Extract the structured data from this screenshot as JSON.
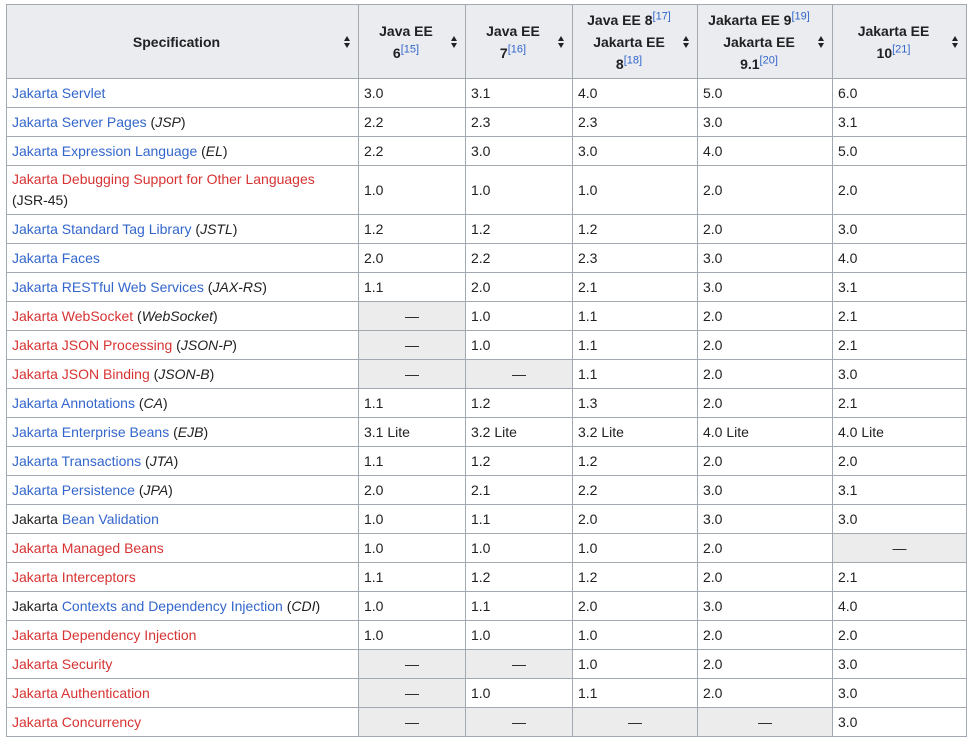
{
  "headers": [
    {
      "line1": "Specification",
      "line2": "",
      "ref": "",
      "line3": "",
      "ref2": ""
    },
    {
      "line1": "Java EE",
      "line2": "6",
      "ref": "[15]",
      "line3": "",
      "ref2": ""
    },
    {
      "line1": "Java EE",
      "line2": "7",
      "ref": "[16]",
      "line3": "",
      "ref2": ""
    },
    {
      "line1": "Java EE 8",
      "line2": "",
      "ref": "[17]",
      "line3": "Jakarta EE 8",
      "ref2": "[18]"
    },
    {
      "line1": "Jakarta EE 9",
      "line2": "",
      "ref": "[19]",
      "line3": "Jakarta EE 9.1",
      "ref2": "[20]"
    },
    {
      "line1": "Jakarta EE",
      "line2": "10",
      "ref": "[21]",
      "line3": "",
      "ref2": ""
    }
  ],
  "rows": [
    {
      "prefix": "",
      "link": "Jakarta Servlet",
      "link_color": "blue",
      "abbr": "",
      "suffix": "",
      "v": [
        "3.0",
        "3.1",
        "4.0",
        "5.0",
        "6.0"
      ]
    },
    {
      "prefix": "",
      "link": "Jakarta Server Pages",
      "link_color": "blue",
      "abbr": "JSP",
      "suffix": "",
      "v": [
        "2.2",
        "2.3",
        "2.3",
        "3.0",
        "3.1"
      ]
    },
    {
      "prefix": "",
      "link": "Jakarta Expression Language",
      "link_color": "blue",
      "abbr": "EL",
      "suffix": "",
      "v": [
        "2.2",
        "3.0",
        "3.0",
        "4.0",
        "5.0"
      ]
    },
    {
      "prefix": "",
      "link": "Jakarta Debugging Support for Other Languages",
      "link_color": "red",
      "abbr": "",
      "suffix": "(JSR-45)",
      "v": [
        "1.0",
        "1.0",
        "1.0",
        "2.0",
        "2.0"
      ],
      "tall": true
    },
    {
      "prefix": "",
      "link": "Jakarta Standard Tag Library",
      "link_color": "blue",
      "abbr": "JSTL",
      "suffix": "",
      "v": [
        "1.2",
        "1.2",
        "1.2",
        "2.0",
        "3.0"
      ]
    },
    {
      "prefix": "",
      "link": "Jakarta Faces",
      "link_color": "blue",
      "abbr": "",
      "suffix": "",
      "v": [
        "2.0",
        "2.2",
        "2.3",
        "3.0",
        "4.0"
      ]
    },
    {
      "prefix": "",
      "link": "Jakarta RESTful Web Services",
      "link_color": "blue",
      "abbr": "JAX-RS",
      "suffix": "",
      "v": [
        "1.1",
        "2.0",
        "2.1",
        "3.0",
        "3.1"
      ]
    },
    {
      "prefix": "",
      "link": "Jakarta WebSocket",
      "link_color": "red",
      "abbr": "WebSocket",
      "suffix": "",
      "v": [
        "—",
        "1.0",
        "1.1",
        "2.0",
        "2.1"
      ]
    },
    {
      "prefix": "",
      "link": "Jakarta JSON Processing",
      "link_color": "red",
      "abbr": "JSON-P",
      "suffix": "",
      "v": [
        "—",
        "1.0",
        "1.1",
        "2.0",
        "2.1"
      ]
    },
    {
      "prefix": "",
      "link": "Jakarta JSON Binding",
      "link_color": "red",
      "abbr": "JSON-B",
      "suffix": "",
      "v": [
        "—",
        "—",
        "1.1",
        "2.0",
        "3.0"
      ]
    },
    {
      "prefix": "",
      "link": "Jakarta Annotations",
      "link_color": "blue",
      "abbr": "CA",
      "suffix": "",
      "v": [
        "1.1",
        "1.2",
        "1.3",
        "2.0",
        "2.1"
      ]
    },
    {
      "prefix": "",
      "link": "Jakarta Enterprise Beans",
      "link_color": "blue",
      "abbr": "EJB",
      "suffix": "",
      "v": [
        "3.1 Lite",
        "3.2 Lite",
        "3.2 Lite",
        "4.0 Lite",
        "4.0 Lite"
      ]
    },
    {
      "prefix": "",
      "link": "Jakarta Transactions",
      "link_color": "blue",
      "abbr": "JTA",
      "suffix": "",
      "v": [
        "1.1",
        "1.2",
        "1.2",
        "2.0",
        "2.0"
      ]
    },
    {
      "prefix": "",
      "link": "Jakarta Persistence",
      "link_color": "blue",
      "abbr": "JPA",
      "suffix": "",
      "v": [
        "2.0",
        "2.1",
        "2.2",
        "3.0",
        "3.1"
      ]
    },
    {
      "prefix": "Jakarta ",
      "link": "Bean Validation",
      "link_color": "blue",
      "abbr": "",
      "suffix": "",
      "v": [
        "1.0",
        "1.1",
        "2.0",
        "3.0",
        "3.0"
      ]
    },
    {
      "prefix": "",
      "link": "Jakarta Managed Beans",
      "link_color": "red",
      "abbr": "",
      "suffix": "",
      "v": [
        "1.0",
        "1.0",
        "1.0",
        "2.0",
        "—"
      ]
    },
    {
      "prefix": "",
      "link": "Jakarta Interceptors",
      "link_color": "red",
      "abbr": "",
      "suffix": "",
      "v": [
        "1.1",
        "1.2",
        "1.2",
        "2.0",
        "2.1"
      ]
    },
    {
      "prefix": "Jakarta ",
      "link": "Contexts and Dependency Injection",
      "link_color": "blue",
      "abbr": "CDI",
      "suffix": "",
      "v": [
        "1.0",
        "1.1",
        "2.0",
        "3.0",
        "4.0"
      ]
    },
    {
      "prefix": "",
      "link": "Jakarta Dependency Injection",
      "link_color": "red",
      "abbr": "",
      "suffix": "",
      "v": [
        "1.0",
        "1.0",
        "1.0",
        "2.0",
        "2.0"
      ]
    },
    {
      "prefix": "",
      "link": "Jakarta Security",
      "link_color": "red",
      "abbr": "",
      "suffix": "",
      "v": [
        "—",
        "—",
        "1.0",
        "2.0",
        "3.0"
      ]
    },
    {
      "prefix": "",
      "link": "Jakarta Authentication",
      "link_color": "red",
      "abbr": "",
      "suffix": "",
      "v": [
        "—",
        "1.0",
        "1.1",
        "2.0",
        "3.0"
      ]
    },
    {
      "prefix": "",
      "link": "Jakarta Concurrency",
      "link_color": "red",
      "abbr": "",
      "suffix": "",
      "v": [
        "—",
        "—",
        "—",
        "—",
        "3.0"
      ]
    }
  ]
}
